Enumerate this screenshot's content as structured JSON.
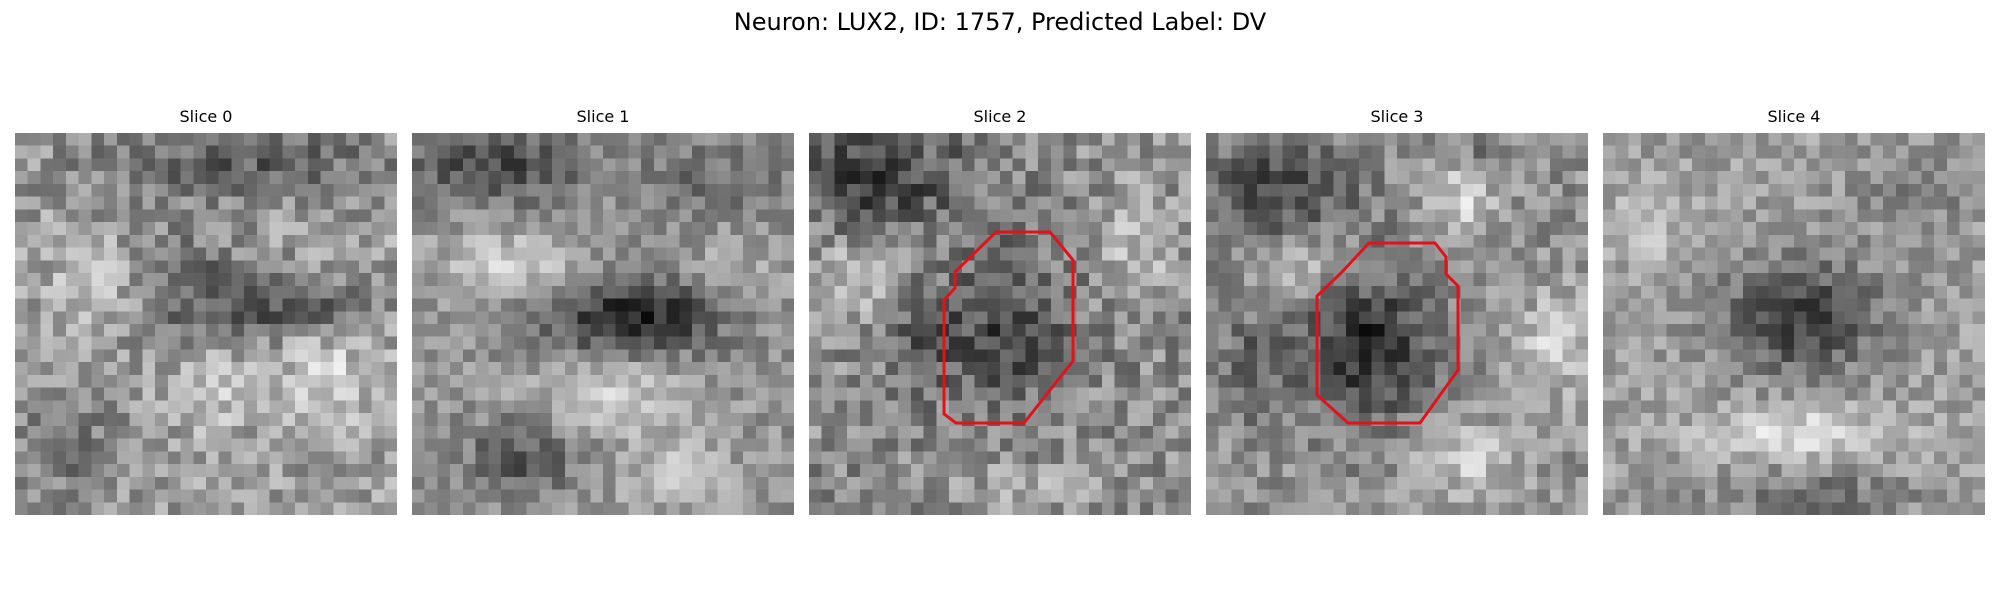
{
  "figure": {
    "title": "Neuron: LUX2, ID: 1757, Predicted Label: DV"
  },
  "slices": [
    {
      "label": "Slice 0",
      "has_roi": false
    },
    {
      "label": "Slice 1",
      "has_roi": false
    },
    {
      "label": "Slice 2",
      "has_roi": true
    },
    {
      "label": "Slice 3",
      "has_roi": true
    },
    {
      "label": "Slice 4",
      "has_roi": false
    }
  ],
  "colors": {
    "roi_outline": "#e0131b",
    "colormap": "gray"
  }
}
